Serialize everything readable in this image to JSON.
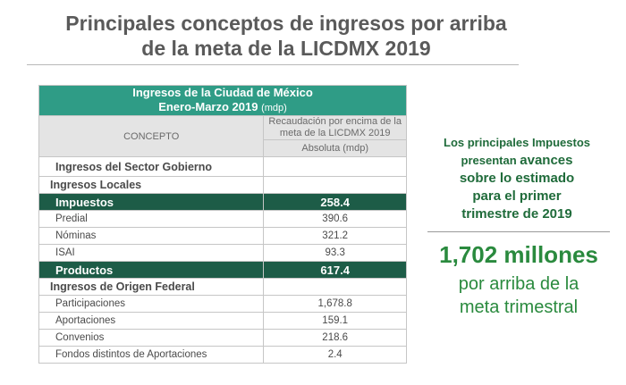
{
  "title": {
    "line1": "Principales conceptos de ingresos por arriba",
    "line2": "de la meta de la LICDMX 2019"
  },
  "table": {
    "header_line1": "Ingresos de la Ciudad de México",
    "header_line2": "Enero-Marzo 2019",
    "header_unit": "(mdp)",
    "concept_header": "CONCEPTO",
    "recaud_line1": "Recaudación por encima de la",
    "recaud_line2": "meta de la LICDMX 2019",
    "abs_header": "Absoluta (mdp)",
    "rows": [
      {
        "label": "Ingresos del Sector Gobierno",
        "value": ""
      },
      {
        "label": "Ingresos Locales",
        "value": ""
      },
      {
        "label": "Impuestos",
        "value": "258.4"
      },
      {
        "label": "Predial",
        "value": "390.6"
      },
      {
        "label": "Nóminas",
        "value": "321.2"
      },
      {
        "label": "ISAI",
        "value": "93.3"
      },
      {
        "label": "Productos",
        "value": "617.4"
      },
      {
        "label": "Ingresos de Origen Federal",
        "value": ""
      },
      {
        "label": "Participaciones",
        "value": "1,678.8"
      },
      {
        "label": "Aportaciones",
        "value": "159.1"
      },
      {
        "label": "Convenios",
        "value": "218.6"
      },
      {
        "label": "Fondos distintos de Aportaciones",
        "value": "2.4"
      }
    ]
  },
  "side": {
    "line1": "Los principales Impuestos",
    "line2a": "presentan",
    "line2b": "avances",
    "line3": "sobre lo estimado",
    "line4": "para el primer",
    "line5": "trimestre de 2019",
    "amount": "1,702 millones",
    "note1": "por arriba de la",
    "note2": "meta trimestral"
  }
}
